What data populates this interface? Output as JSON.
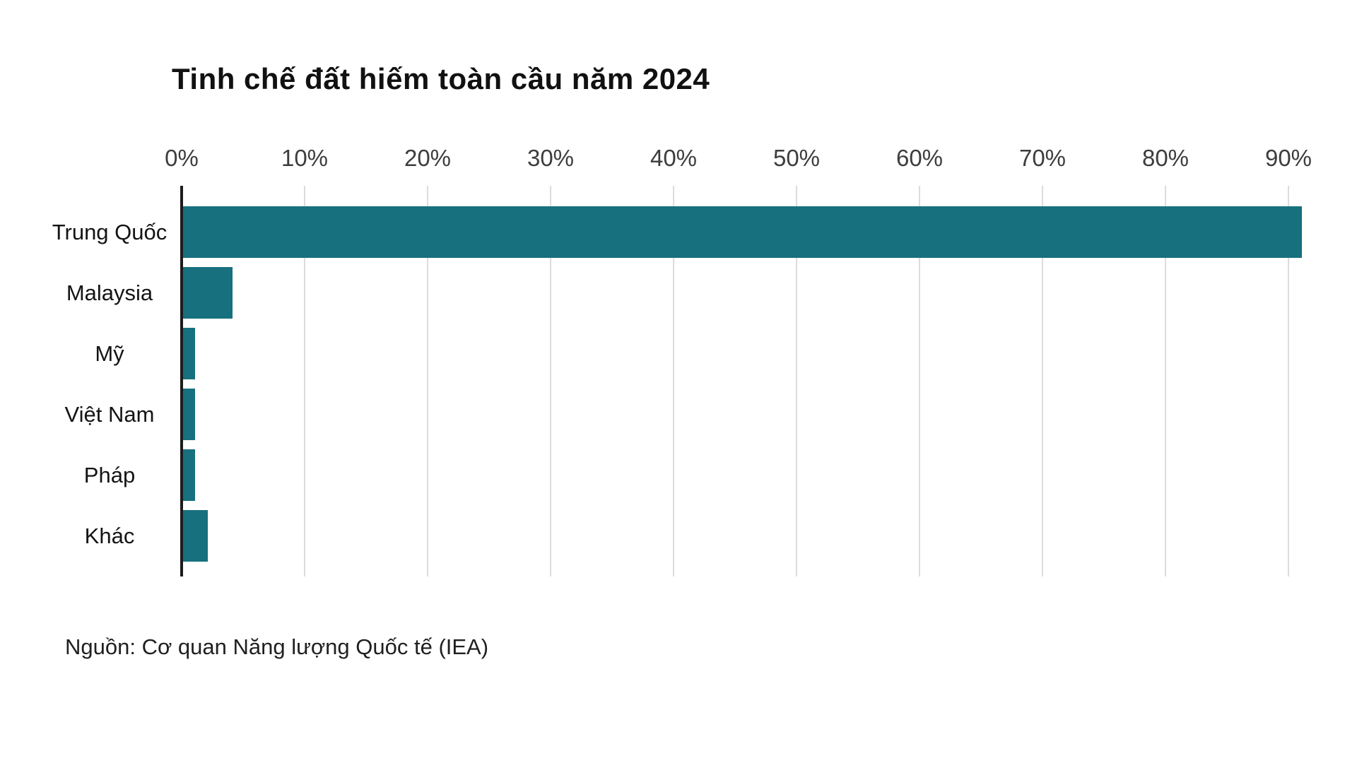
{
  "title": "Tinh chế đất hiếm toàn cầu năm 2024",
  "source": "Nguồn: Cơ quan Năng lượng Quốc tế (IEA)",
  "colors": {
    "bar": "#17707e",
    "axis_line": "#1c1c1c",
    "gridline": "#dcdcdc",
    "tick_text": "#3d3d3d",
    "label_text": "#141414",
    "background": "#ffffff"
  },
  "chart_data": {
    "type": "bar",
    "orientation": "horizontal",
    "title": "Tinh chế đất hiếm toàn cầu năm 2024",
    "categories": [
      "Trung Quốc",
      "Malaysia",
      "Mỹ",
      "Việt Nam",
      "Pháp",
      "Khác"
    ],
    "values": [
      91,
      4,
      1,
      1,
      1,
      2
    ],
    "unit": "%",
    "xlabel": "",
    "ylabel": "",
    "xlim": [
      0,
      93
    ],
    "x_tick_values": [
      0,
      10,
      20,
      30,
      40,
      50,
      60,
      70,
      80,
      90
    ],
    "x_tick_labels": [
      "0%",
      "10%",
      "20%",
      "30%",
      "40%",
      "50%",
      "60%",
      "70%",
      "80%",
      "90%"
    ],
    "grid": "vertical-gridlines",
    "tick_position": "top",
    "legend": "none",
    "source_note": "Nguồn: Cơ quan Năng lượng Quốc tế (IEA)"
  }
}
